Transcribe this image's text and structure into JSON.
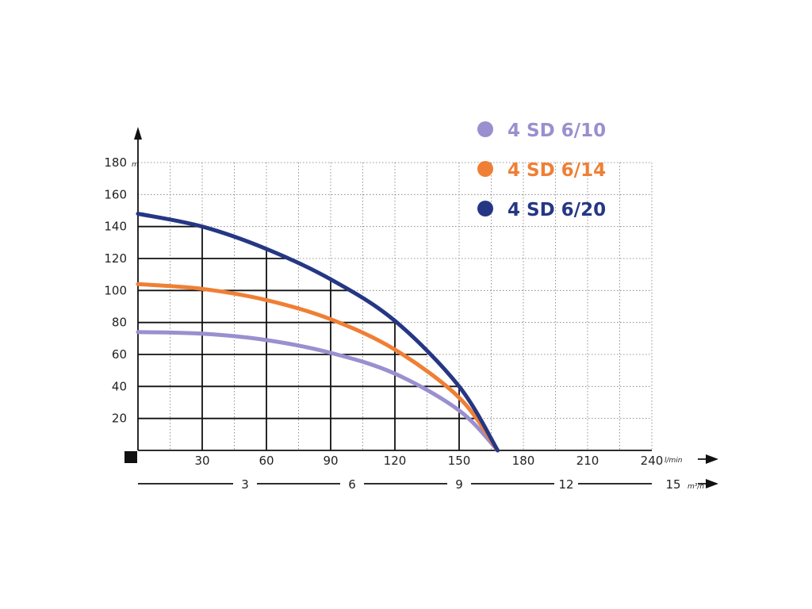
{
  "chart_data": {
    "type": "line",
    "title": "",
    "y_unit": "m",
    "x_unit_primary": "l/min",
    "x_unit_secondary": "m³/h",
    "ylim": [
      0,
      180
    ],
    "xlim": [
      0,
      240
    ],
    "y_ticks": [
      20,
      40,
      60,
      80,
      100,
      120,
      140,
      160,
      180
    ],
    "x_ticks_primary": [
      30,
      60,
      90,
      120,
      150,
      180,
      210,
      240
    ],
    "x_ticks_secondary": [
      3,
      6,
      9,
      12,
      15
    ],
    "grid": true,
    "legend_position": "top-right",
    "series": [
      {
        "name": "4 SD 6/10",
        "color": "#9a8fcf",
        "x": [
          0,
          30,
          60,
          90,
          120,
          150,
          168
        ],
        "y": [
          74,
          73,
          69,
          61,
          48,
          25,
          0
        ]
      },
      {
        "name": "4 SD 6/14",
        "color": "#ef7f35",
        "x": [
          0,
          30,
          60,
          90,
          120,
          150,
          168
        ],
        "y": [
          104,
          101,
          94,
          82,
          63,
          33,
          0
        ]
      },
      {
        "name": "4 SD 6/20",
        "color": "#253784",
        "x": [
          0,
          30,
          60,
          90,
          120,
          150,
          168
        ],
        "y": [
          148,
          140,
          126,
          107,
          81,
          40,
          0
        ]
      }
    ]
  }
}
